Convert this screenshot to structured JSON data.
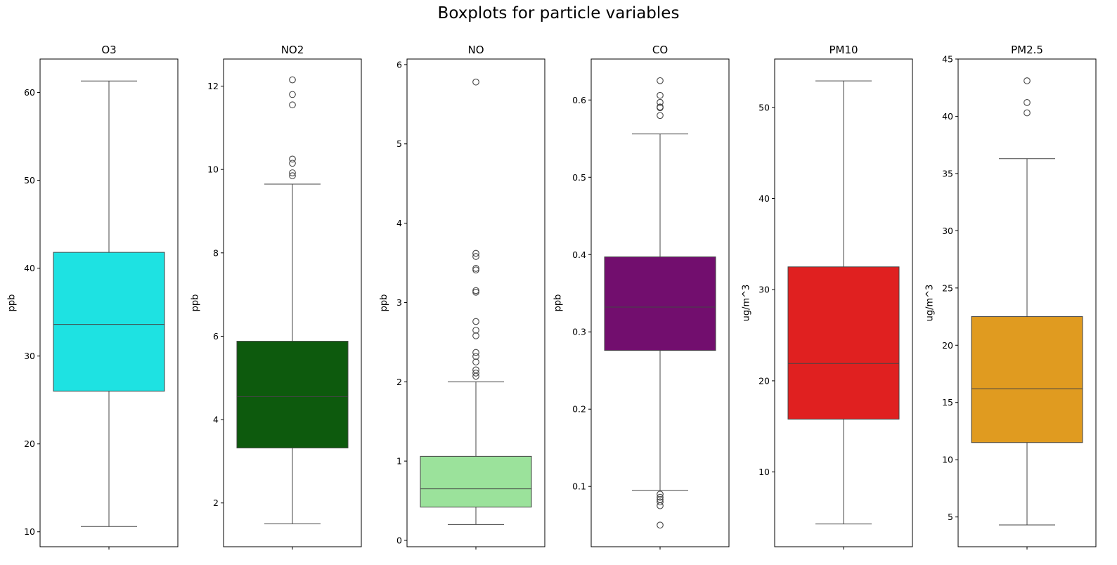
{
  "figure": {
    "title": "Boxplots for particle variables"
  },
  "chart_data": [
    {
      "type": "box",
      "title": "O3",
      "ylabel": "ppb",
      "ylim": [
        8.3,
        63.8
      ],
      "yticks": [
        10,
        20,
        30,
        40,
        50,
        60
      ],
      "color": "#1ee2e2",
      "box": {
        "whisker_low": 10.6,
        "q1": 26.0,
        "median": 33.6,
        "q3": 41.8,
        "whisker_high": 61.3
      },
      "outliers": []
    },
    {
      "type": "box",
      "title": "NO2",
      "ylabel": "ppb",
      "ylim": [
        0.95,
        12.65
      ],
      "yticks": [
        2,
        4,
        6,
        8,
        10,
        12
      ],
      "color": "#0d5a0d",
      "box": {
        "whisker_low": 1.5,
        "q1": 3.32,
        "median": 4.55,
        "q3": 5.88,
        "whisker_high": 9.65
      },
      "outliers": [
        9.85,
        9.92,
        10.15,
        10.25,
        11.55,
        11.8,
        12.15
      ]
    },
    {
      "type": "box",
      "title": "NO",
      "ylabel": "ppb",
      "ylim": [
        -0.08,
        6.07
      ],
      "yticks": [
        0,
        1,
        2,
        3,
        4,
        5,
        6
      ],
      "color": "#9be29b",
      "box": {
        "whisker_low": 0.2,
        "q1": 0.42,
        "median": 0.65,
        "q3": 1.06,
        "whisker_high": 2.0
      },
      "outliers": [
        2.07,
        2.11,
        2.15,
        2.25,
        2.32,
        2.37,
        2.58,
        2.65,
        2.76,
        3.13,
        3.15,
        3.41,
        3.43,
        3.58,
        3.62,
        5.78
      ]
    },
    {
      "type": "box",
      "title": "CO",
      "ylabel": "ppb",
      "ylim": [
        0.022,
        0.653
      ],
      "yticks": [
        0.1,
        0.2,
        0.3,
        0.4,
        0.5,
        0.6
      ],
      "color": "#720e6e",
      "box": {
        "whisker_low": 0.095,
        "q1": 0.276,
        "median": 0.332,
        "q3": 0.397,
        "whisker_high": 0.556
      },
      "outliers": [
        0.05,
        0.075,
        0.08,
        0.083,
        0.086,
        0.09,
        0.58,
        0.59,
        0.591,
        0.597,
        0.606,
        0.625
      ]
    },
    {
      "type": "box",
      "title": "PM10",
      "ylabel": "ug/m^3",
      "ylim": [
        1.8,
        55.3
      ],
      "yticks": [
        10,
        20,
        30,
        40,
        50
      ],
      "color": "#e02020",
      "box": {
        "whisker_low": 4.3,
        "q1": 15.8,
        "median": 21.9,
        "q3": 32.5,
        "whisker_high": 52.9
      },
      "outliers": []
    },
    {
      "type": "box",
      "title": "PM2.5",
      "ylabel": "ug/m^3",
      "ylim": [
        2.4,
        45.0
      ],
      "yticks": [
        5,
        10,
        15,
        20,
        25,
        30,
        35,
        40,
        45
      ],
      "color": "#e09b20",
      "box": {
        "whisker_low": 4.3,
        "q1": 11.5,
        "median": 16.2,
        "q3": 22.5,
        "whisker_high": 36.3
      },
      "outliers": [
        40.3,
        41.2,
        43.1
      ]
    }
  ]
}
